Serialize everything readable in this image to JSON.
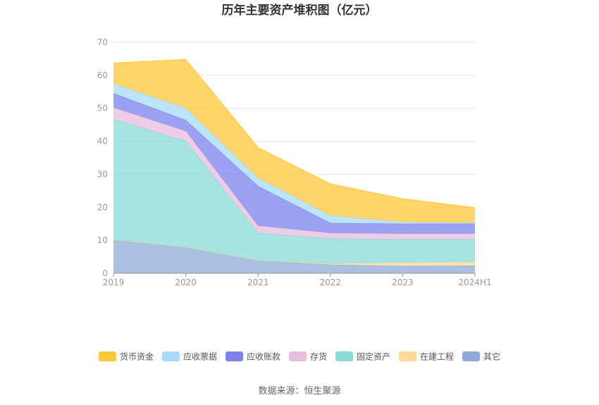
{
  "chart_data": {
    "type": "area",
    "stacked": true,
    "title": "历年主要资产堆积图（亿元）",
    "categories": [
      "2019",
      "2020",
      "2021",
      "2022",
      "2023",
      "2024H1"
    ],
    "ylim": [
      0,
      70
    ],
    "yticks": [
      "0",
      "10",
      "20",
      "30",
      "40",
      "50",
      "60",
      "70"
    ],
    "grid": true,
    "legend_position": "bottom",
    "series": [
      {
        "name": "其它",
        "color": "#8fa9d8",
        "values": [
          10.0,
          7.8,
          3.8,
          2.6,
          2.2,
          2.3
        ]
      },
      {
        "name": "在建工程",
        "color": "#ffd999",
        "values": [
          0.2,
          0.1,
          0.1,
          0.3,
          1.0,
          1.1
        ]
      },
      {
        "name": "固定资产",
        "color": "#88dbd7",
        "values": [
          36.5,
          32.2,
          8.3,
          7.6,
          7.1,
          6.9
        ]
      },
      {
        "name": "存货",
        "color": "#e8bede",
        "values": [
          3.5,
          3.0,
          2.2,
          1.7,
          1.7,
          1.7
        ]
      },
      {
        "name": "应收账款",
        "color": "#7b82ee",
        "values": [
          4.3,
          3.3,
          12.0,
          3.0,
          3.0,
          3.0
        ]
      },
      {
        "name": "应收票据",
        "color": "#a6dcf7",
        "values": [
          3.0,
          3.6,
          2.5,
          2.3,
          0.5,
          0.3
        ]
      },
      {
        "name": "货币资金",
        "color": "#ffc73a",
        "values": [
          6.2,
          14.8,
          9.2,
          9.6,
          7.1,
          4.6
        ]
      }
    ],
    "legend_order": [
      "货币资金",
      "应收票据",
      "应收账款",
      "存货",
      "固定资产",
      "在建工程",
      "其它"
    ]
  },
  "footer": {
    "source": "数据来源：恒生聚源"
  }
}
